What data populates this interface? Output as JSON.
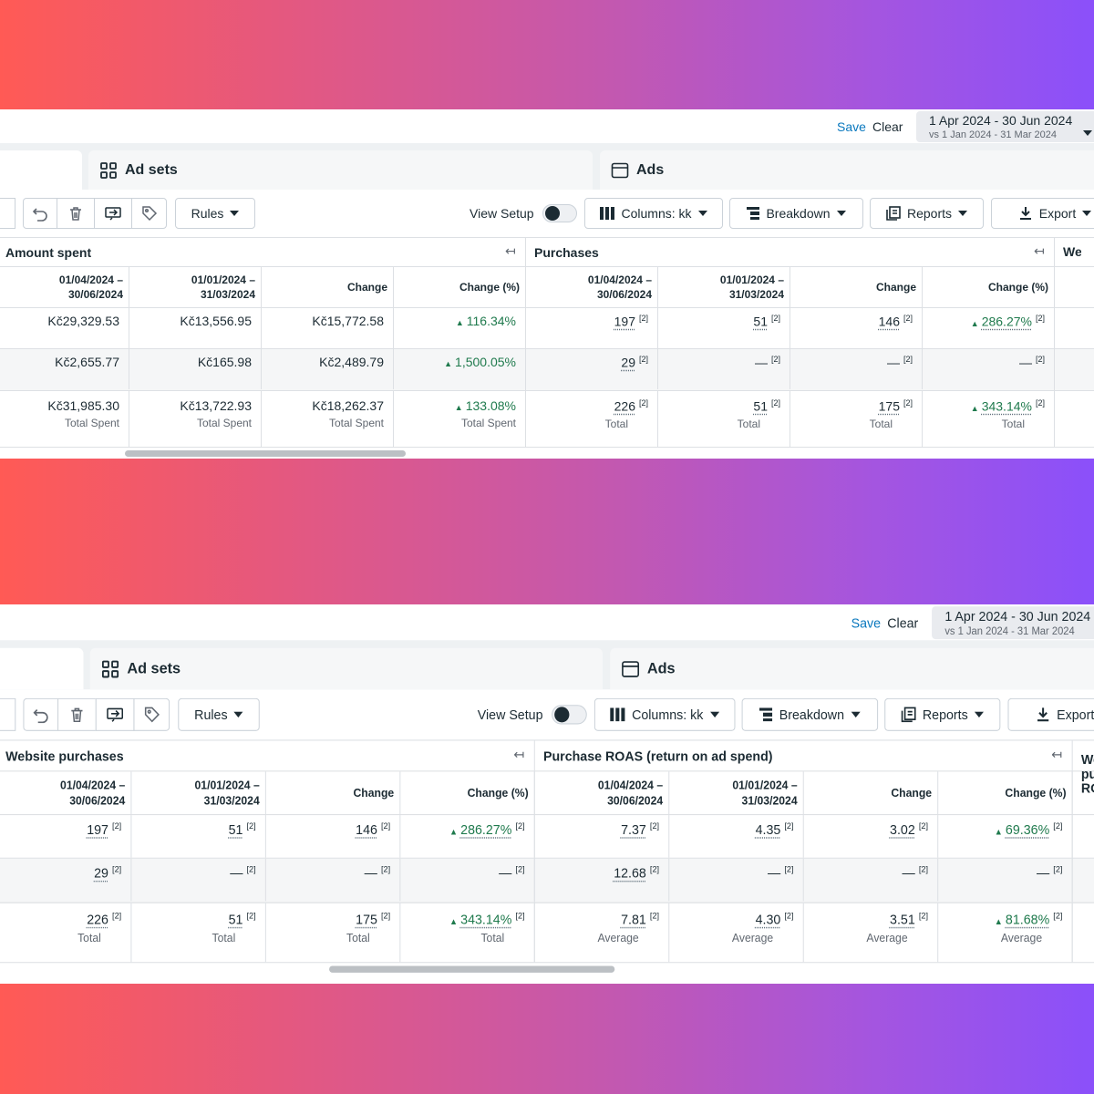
{
  "panels": [
    {
      "save": "Save",
      "clear": "Clear",
      "date_range": "1 Apr 2024 - 30 Jun 2024",
      "compare_range": "vs 1 Jan 2024 - 31 Mar 2024",
      "tabs": [
        "Ad sets",
        "Ads"
      ],
      "toolbar": {
        "rules": "Rules",
        "view_setup": "View Setup",
        "columns": "Columns: kk",
        "breakdown": "Breakdown",
        "reports": "Reports",
        "export": "Export"
      },
      "groups": [
        {
          "title": "Amount spent",
          "columns": [
            "01/04/2024 – 30/06/2024",
            "01/01/2024 – 31/03/2024",
            "Change",
            "Change (%)"
          ],
          "rows": [
            [
              "Kč29,329.53",
              "Kč13,556.95",
              "Kč15,772.58",
              "116.34%"
            ],
            [
              "Kč2,655.77",
              "Kč165.98",
              "Kč2,489.79",
              "1,500.05%"
            ]
          ],
          "footer": [
            "Kč31,985.30",
            "Kč13,722.93",
            "Kč18,262.37",
            "133.08%"
          ],
          "footer_labels": [
            "Total Spent",
            "Total Spent",
            "Total Spent",
            "Total Spent"
          ]
        },
        {
          "title": "Purchases",
          "note": "[2]",
          "columns": [
            "01/04/2024 – 30/06/2024",
            "01/01/2024 – 31/03/2024",
            "Change",
            "Change (%)"
          ],
          "rows": [
            [
              "197",
              "51",
              "146",
              "286.27%"
            ],
            [
              "29",
              "—",
              "—",
              "—"
            ]
          ],
          "footer": [
            "226",
            "51",
            "175",
            "343.14%"
          ],
          "footer_labels": [
            "Total",
            "Total",
            "Total",
            "Total"
          ]
        }
      ],
      "next_group": "Webs"
    },
    {
      "save": "Save",
      "clear": "Clear",
      "date_range": "1 Apr 2024 - 30 Jun 2024",
      "compare_range": "vs 1 Jan 2024 - 31 Mar 2024",
      "tabs": [
        "Ad sets",
        "Ads"
      ],
      "toolbar": {
        "rules": "Rules",
        "view_setup": "View Setup",
        "columns": "Columns: kk",
        "breakdown": "Breakdown",
        "reports": "Reports",
        "export": "Export"
      },
      "groups": [
        {
          "title": "Website purchases",
          "note": "[2]",
          "columns": [
            "01/04/2024 – 30/06/2024",
            "01/01/2024 – 31/03/2024",
            "Change",
            "Change (%)"
          ],
          "rows": [
            [
              "197",
              "51",
              "146",
              "286.27%"
            ],
            [
              "29",
              "—",
              "—",
              "—"
            ]
          ],
          "footer": [
            "226",
            "51",
            "175",
            "343.14%"
          ],
          "footer_labels": [
            "Total",
            "Total",
            "Total",
            "Total"
          ]
        },
        {
          "title": "Purchase ROAS (return on ad spend)",
          "note": "[2]",
          "columns": [
            "01/04/2024 – 30/06/2024",
            "01/01/2024 – 31/03/2024",
            "Change",
            "Change (%)"
          ],
          "rows": [
            [
              "7.37",
              "4.35",
              "3.02",
              "69.36%"
            ],
            [
              "12.68",
              "—",
              "—",
              "—"
            ]
          ],
          "footer": [
            "7.81",
            "4.30",
            "3.51",
            "81.68%"
          ],
          "footer_labels": [
            "Average",
            "Average",
            "Average",
            "Average"
          ]
        }
      ],
      "next_group": "Website purchases ROAS"
    }
  ]
}
